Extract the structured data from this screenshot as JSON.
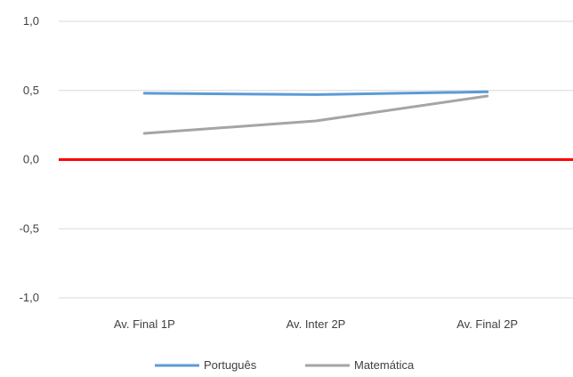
{
  "chart_data": {
    "type": "line",
    "categories": [
      "Av. Final 1P",
      "Av. Inter 2P",
      "Av. Final 2P"
    ],
    "series": [
      {
        "name": "Português",
        "values": [
          0.48,
          0.47,
          0.49
        ],
        "color": "#5b9bd5"
      },
      {
        "name": "Matemática",
        "values": [
          0.19,
          0.28,
          0.46
        ],
        "color": "#a5a5a5"
      }
    ],
    "ylim": [
      -1.0,
      1.0
    ],
    "yticks": [
      1.0,
      0.5,
      0.0,
      -0.5,
      -1.0
    ],
    "ytick_labels": [
      "1,0",
      "0,5",
      "0,0",
      "-0,5",
      "-1,0"
    ],
    "reference_line": {
      "value": 0.0,
      "color": "#ff0000"
    },
    "grid": true,
    "gridline_color": "#d9d9d9",
    "legend_position": "bottom",
    "title": "",
    "xlabel": "",
    "ylabel": ""
  }
}
